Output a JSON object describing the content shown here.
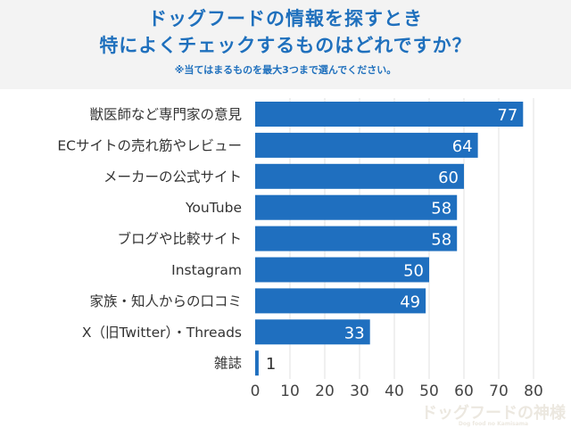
{
  "chart_data": {
    "type": "bar",
    "orientation": "horizontal",
    "title": "ドッグフードの情報を探すとき",
    "title_line2": "特によくチェックするものはどれですか？",
    "subtitle": "※当てはまるものを最大3つまで選んでください。",
    "categories": [
      "獣医師など専門家の意見",
      "ECサイトの売れ筋やレビュー",
      "メーカーの公式サイト",
      "YouTube",
      "ブログや比較サイト",
      "Instagram",
      "家族・知人からの口コミ",
      "X（旧Twitter）・Threads",
      "雑誌"
    ],
    "values": [
      77,
      64,
      60,
      58,
      58,
      50,
      49,
      33,
      1
    ],
    "xlim": [
      0,
      80
    ],
    "xticks": [
      0,
      10,
      20,
      30,
      40,
      50,
      60,
      70,
      80
    ],
    "grid": true,
    "data_labels": true,
    "bar_color": "#1f6fbf",
    "title_color": "#1f70bd"
  },
  "logo": {
    "text": "ドッグフードの神様",
    "tagline": "Dog food no Kamisama"
  }
}
